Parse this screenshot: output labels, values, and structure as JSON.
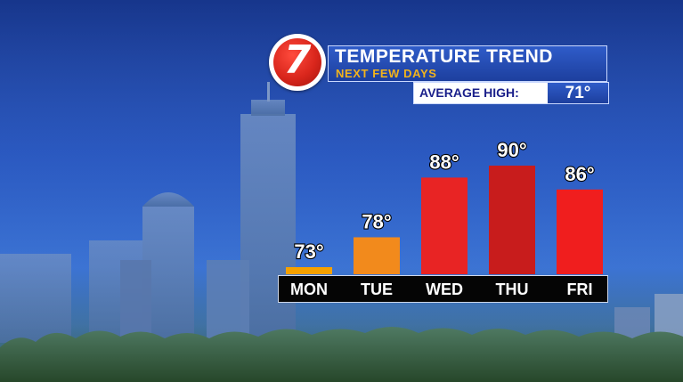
{
  "header": {
    "logo_text": "7",
    "title": "TEMPERATURE TREND",
    "subtitle": "NEXT FEW DAYS",
    "average_label": "AVERAGE HIGH:",
    "average_value": "71°"
  },
  "colors": {
    "mon": "#f5a100",
    "tue": "#f28a1c",
    "wed": "#e82424",
    "thu": "#c81c1c",
    "fri": "#f01e1e",
    "accent_yellow": "#f2b31c",
    "panel_blue": "#2548b0"
  },
  "chart_data": {
    "type": "bar",
    "categories": [
      "MON",
      "TUE",
      "WED",
      "THU",
      "FRI"
    ],
    "values": [
      73,
      78,
      88,
      90,
      86
    ],
    "value_labels": [
      "73°",
      "78°",
      "88°",
      "90°",
      "86°"
    ],
    "unit": "°",
    "title": "TEMPERATURE TREND",
    "subtitle": "NEXT FEW DAYS",
    "xlabel": "",
    "ylabel": "",
    "grid": false,
    "legend": "none"
  }
}
